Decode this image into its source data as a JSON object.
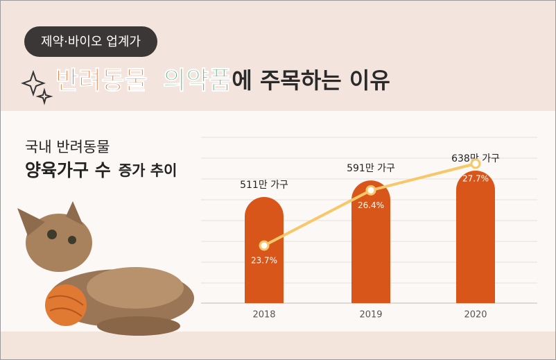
{
  "header": {
    "tag": "제약·바이오 업계가",
    "title": [
      "반려동물",
      "의약품",
      "에 주목하는 이유"
    ]
  },
  "chart_data": {
    "type": "bar",
    "title": [
      "국내 반려동물",
      "양육가구 수",
      "증가 추이"
    ],
    "categories": [
      "2018",
      "2019",
      "2020"
    ],
    "values": [
      511,
      591,
      638
    ],
    "value_labels": [
      "511만 가구",
      "591만 가구",
      "638만 가구"
    ],
    "color": "#d9561a",
    "line": {
      "values": [
        23.7,
        26.4,
        27.7
      ],
      "value_labels": [
        "23.7%",
        "26.4%",
        "27.7%"
      ],
      "color": "#f6c86a"
    }
  }
}
